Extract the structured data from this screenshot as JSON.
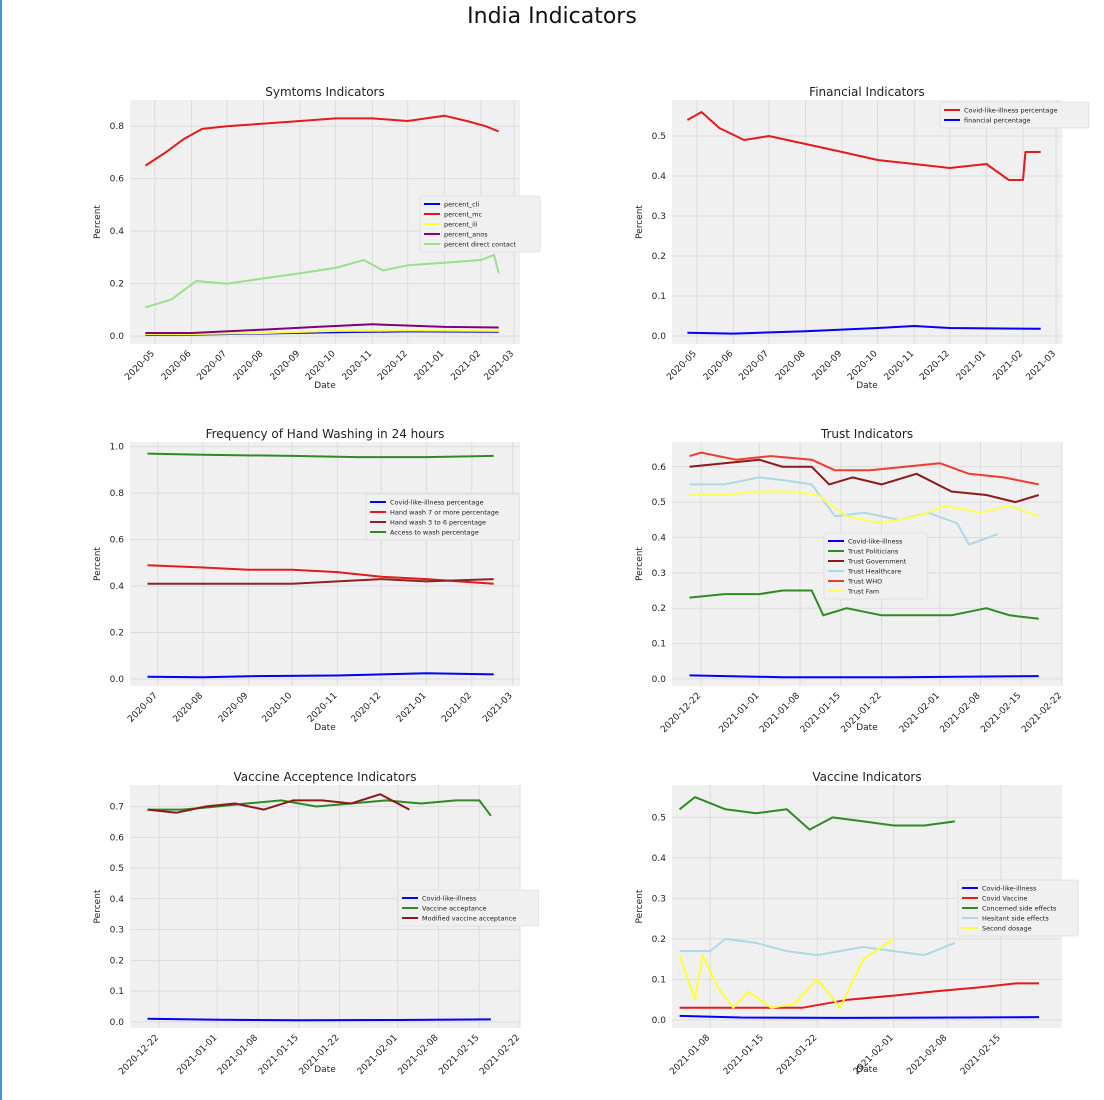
{
  "page": {
    "suptitle": "India Indicators"
  },
  "chart_data": [
    {
      "type": "line",
      "title": "Symtoms Indicators",
      "xlabel": "Date",
      "ylabel": "Percent",
      "x_range": [
        "2020-04-10",
        "2021-03-06"
      ],
      "ylim": [
        -0.03,
        0.9
      ],
      "yticks": [
        0.0,
        0.2,
        0.4,
        0.6,
        0.8
      ],
      "xticks": [
        "2020-05",
        "2020-06",
        "2020-07",
        "2020-08",
        "2020-09",
        "2020-10",
        "2020-11",
        "2020-12",
        "2021-01",
        "2021-02",
        "2021-03"
      ],
      "grid": true,
      "legend_placement": "center-right",
      "series": [
        {
          "name": "percent_cli",
          "color": "#0000ff",
          "x": [
            "2020-04-23",
            "2020-06-01",
            "2020-08-01",
            "2020-10-01",
            "2020-12-01",
            "2021-02-16"
          ],
          "y": [
            0.005,
            0.006,
            0.01,
            0.015,
            0.018,
            0.017
          ]
        },
        {
          "name": "percent_mc",
          "color": "#e41a1c",
          "x": [
            "2020-04-23",
            "2020-05-10",
            "2020-05-25",
            "2020-06-10",
            "2020-07-01",
            "2020-08-01",
            "2020-09-01",
            "2020-10-01",
            "2020-11-01",
            "2020-12-01",
            "2021-01-01",
            "2021-01-20",
            "2021-02-05",
            "2021-02-16"
          ],
          "y": [
            0.65,
            0.7,
            0.75,
            0.79,
            0.8,
            0.81,
            0.82,
            0.83,
            0.83,
            0.82,
            0.84,
            0.82,
            0.8,
            0.78
          ]
        },
        {
          "name": "percent_ili",
          "color": "#ffff33",
          "x": [
            "2020-04-23",
            "2020-06-01",
            "2020-08-01",
            "2020-10-01",
            "2020-12-01",
            "2021-02-16"
          ],
          "y": [
            0.008,
            0.008,
            0.012,
            0.02,
            0.022,
            0.02
          ]
        },
        {
          "name": "percent_anos",
          "color": "#800080",
          "x": [
            "2020-04-23",
            "2020-06-01",
            "2020-08-01",
            "2020-09-15",
            "2020-11-01",
            "2021-01-01",
            "2021-02-16"
          ],
          "y": [
            0.012,
            0.012,
            0.025,
            0.035,
            0.045,
            0.035,
            0.033
          ]
        },
        {
          "name": "percent direct contact",
          "color": "#98e08a",
          "x": [
            "2020-04-23",
            "2020-05-15",
            "2020-06-05",
            "2020-07-01",
            "2020-08-01",
            "2020-09-01",
            "2020-10-01",
            "2020-10-25",
            "2020-11-10",
            "2020-12-01",
            "2021-01-01",
            "2021-02-01",
            "2021-02-12",
            "2021-02-16"
          ],
          "y": [
            0.11,
            0.14,
            0.21,
            0.2,
            0.22,
            0.24,
            0.26,
            0.29,
            0.25,
            0.27,
            0.28,
            0.29,
            0.31,
            0.24
          ]
        }
      ]
    },
    {
      "type": "line",
      "title": "Financial Indicators",
      "xlabel": "Date",
      "ylabel": "Percent",
      "x_range": [
        "2020-04-10",
        "2021-03-06"
      ],
      "ylim": [
        -0.02,
        0.59
      ],
      "yticks": [
        0.0,
        0.1,
        0.2,
        0.3,
        0.4,
        0.5
      ],
      "xticks": [
        "2020-05",
        "2020-06",
        "2020-07",
        "2020-08",
        "2020-09",
        "2020-10",
        "2020-11",
        "2020-12",
        "2021-01",
        "2021-02",
        "2021-03"
      ],
      "grid": true,
      "legend_placement": "upper-right",
      "series": [
        {
          "name": "Covid-like-illness percentage",
          "color": "#e41a1c",
          "x": [
            "2020-04-23",
            "2020-05-05",
            "2020-05-20",
            "2020-06-10",
            "2020-07-01",
            "2020-08-01",
            "2020-09-01",
            "2020-10-01",
            "2020-11-01",
            "2020-12-01",
            "2021-01-01",
            "2021-01-20",
            "2021-02-01",
            "2021-02-03",
            "2021-02-16"
          ],
          "y": [
            0.54,
            0.56,
            0.52,
            0.49,
            0.5,
            0.48,
            0.46,
            0.44,
            0.43,
            0.42,
            0.43,
            0.39,
            0.39,
            0.46,
            0.46
          ]
        },
        {
          "name": "financial percentage",
          "color": "#0000ff",
          "x": [
            "2020-04-23",
            "2020-06-01",
            "2020-08-01",
            "2020-10-01",
            "2020-11-01",
            "2020-12-01",
            "2021-02-16"
          ],
          "y": [
            0.008,
            0.006,
            0.012,
            0.02,
            0.025,
            0.02,
            0.018
          ]
        }
      ]
    },
    {
      "type": "line",
      "title": "Frequency of Hand Washing in 24 hours",
      "xlabel": "Date",
      "ylabel": "Percent",
      "x_range": [
        "2020-06-12",
        "2021-03-06"
      ],
      "ylim": [
        -0.03,
        1.02
      ],
      "yticks": [
        0.0,
        0.2,
        0.4,
        0.6,
        0.8,
        1.0
      ],
      "xticks": [
        "2020-07",
        "2020-08",
        "2020-09",
        "2020-10",
        "2020-11",
        "2020-12",
        "2021-01",
        "2021-02",
        "2021-03"
      ],
      "grid": true,
      "legend_placement": "center-right",
      "series": [
        {
          "name": "Covid-like-illness percentage",
          "color": "#0000ff",
          "x": [
            "2020-06-24",
            "2020-08-01",
            "2020-09-01",
            "2020-11-01",
            "2021-01-01",
            "2021-02-16"
          ],
          "y": [
            0.01,
            0.008,
            0.012,
            0.015,
            0.025,
            0.02
          ]
        },
        {
          "name": "Hand wash 7 or more percentage",
          "color": "#e41a1c",
          "x": [
            "2020-06-24",
            "2020-08-01",
            "2020-09-01",
            "2020-10-01",
            "2020-11-01",
            "2020-12-01",
            "2021-01-01",
            "2021-02-16"
          ],
          "y": [
            0.49,
            0.48,
            0.47,
            0.47,
            0.46,
            0.44,
            0.43,
            0.41
          ]
        },
        {
          "name": "Hand wash 3 to 6 percentage",
          "color": "#8b2323",
          "x": [
            "2020-06-24",
            "2020-08-01",
            "2020-09-01",
            "2020-10-01",
            "2020-11-01",
            "2020-12-01",
            "2021-01-01",
            "2021-02-16"
          ],
          "y": [
            0.41,
            0.41,
            0.41,
            0.41,
            0.42,
            0.43,
            0.42,
            0.43
          ]
        },
        {
          "name": "Access to wash percentage",
          "color": "#2e8b22",
          "x": [
            "2020-06-24",
            "2020-08-01",
            "2020-10-01",
            "2020-11-15",
            "2021-01-01",
            "2021-02-16"
          ],
          "y": [
            0.97,
            0.965,
            0.96,
            0.955,
            0.955,
            0.96
          ]
        }
      ]
    },
    {
      "type": "line",
      "title": "Trust Indicators",
      "xlabel": "Date",
      "ylabel": "Percent",
      "x_range": [
        "2020-12-17",
        "2021-02-22"
      ],
      "ylim": [
        -0.02,
        0.67
      ],
      "yticks": [
        0.0,
        0.1,
        0.2,
        0.3,
        0.4,
        0.5,
        0.6
      ],
      "xticks": [
        "2020-12-22",
        "2021-01-01",
        "2021-01-08",
        "2021-01-15",
        "2021-01-22",
        "2021-02-01",
        "2021-02-08",
        "2021-02-15",
        "2021-02-22"
      ],
      "grid": true,
      "legend_placement": "center",
      "series": [
        {
          "name": "Covid-like-illness",
          "color": "#0000ff",
          "x": [
            "2020-12-20",
            "2021-01-05",
            "2021-01-25",
            "2021-02-18"
          ],
          "y": [
            0.01,
            0.005,
            0.005,
            0.008
          ]
        },
        {
          "name": "Trust Politicians",
          "color": "#2e8b22",
          "x": [
            "2020-12-20",
            "2020-12-26",
            "2021-01-01",
            "2021-01-05",
            "2021-01-10",
            "2021-01-12",
            "2021-01-16",
            "2021-01-22",
            "2021-01-28",
            "2021-02-03",
            "2021-02-09",
            "2021-02-13",
            "2021-02-18"
          ],
          "y": [
            0.23,
            0.24,
            0.24,
            0.25,
            0.25,
            0.18,
            0.2,
            0.18,
            0.18,
            0.18,
            0.2,
            0.18,
            0.17
          ]
        },
        {
          "name": "Trust Government",
          "color": "#8b1a1a",
          "x": [
            "2020-12-20",
            "2020-12-26",
            "2021-01-01",
            "2021-01-05",
            "2021-01-10",
            "2021-01-13",
            "2021-01-17",
            "2021-01-22",
            "2021-01-28",
            "2021-02-03",
            "2021-02-09",
            "2021-02-14",
            "2021-02-18"
          ],
          "y": [
            0.6,
            0.61,
            0.62,
            0.6,
            0.6,
            0.55,
            0.57,
            0.55,
            0.58,
            0.53,
            0.52,
            0.5,
            0.52
          ]
        },
        {
          "name": "Trust Healthcare",
          "color": "#add8e6",
          "x": [
            "2020-12-20",
            "2020-12-26",
            "2021-01-01",
            "2021-01-06",
            "2021-01-10",
            "2021-01-14",
            "2021-01-19",
            "2021-01-25",
            "2021-01-30",
            "2021-02-04",
            "2021-02-06",
            "2021-02-11"
          ],
          "y": [
            0.55,
            0.55,
            0.57,
            0.56,
            0.55,
            0.46,
            0.47,
            0.45,
            0.47,
            0.44,
            0.38,
            0.41
          ]
        },
        {
          "name": "Trust WHO",
          "color": "#f03c2e",
          "x": [
            "2020-12-20",
            "2020-12-22",
            "2020-12-28",
            "2021-01-03",
            "2021-01-10",
            "2021-01-14",
            "2021-01-20",
            "2021-01-26",
            "2021-02-01",
            "2021-02-06",
            "2021-02-12",
            "2021-02-18"
          ],
          "y": [
            0.63,
            0.64,
            0.62,
            0.63,
            0.62,
            0.59,
            0.59,
            0.6,
            0.61,
            0.58,
            0.57,
            0.55
          ]
        },
        {
          "name": "Trust Fam",
          "color": "#ffff55",
          "x": [
            "2020-12-20",
            "2020-12-26",
            "2021-01-01",
            "2021-01-06",
            "2021-01-11",
            "2021-01-16",
            "2021-01-22",
            "2021-01-28",
            "2021-02-02",
            "2021-02-08",
            "2021-02-13",
            "2021-02-18"
          ],
          "y": [
            0.52,
            0.52,
            0.53,
            0.53,
            0.52,
            0.46,
            0.44,
            0.46,
            0.49,
            0.47,
            0.49,
            0.46
          ]
        }
      ]
    },
    {
      "type": "line",
      "title": "Vaccine Acceptence Indicators",
      "xlabel": "Date",
      "ylabel": "Percent",
      "x_range": [
        "2020-12-17",
        "2021-02-22"
      ],
      "ylim": [
        -0.02,
        0.77
      ],
      "yticks": [
        0.0,
        0.1,
        0.2,
        0.3,
        0.4,
        0.5,
        0.6,
        0.7
      ],
      "xticks": [
        "2020-12-22",
        "2021-01-01",
        "2021-01-08",
        "2021-01-15",
        "2021-01-22",
        "2021-02-01",
        "2021-02-08",
        "2021-02-15",
        "2021-02-22"
      ],
      "grid": true,
      "legend_placement": "center-right",
      "series": [
        {
          "name": "Covid-like-illness",
          "color": "#0000ff",
          "x": [
            "2020-12-20",
            "2021-01-01",
            "2021-01-15",
            "2021-02-01",
            "2021-02-17"
          ],
          "y": [
            0.01,
            0.007,
            0.005,
            0.006,
            0.008
          ]
        },
        {
          "name": "Vaccine acceptance",
          "color": "#2e8b22",
          "x": [
            "2020-12-20",
            "2020-12-26",
            "2021-01-01",
            "2021-01-06",
            "2021-01-12",
            "2021-01-18",
            "2021-01-24",
            "2021-01-30",
            "2021-02-05",
            "2021-02-11",
            "2021-02-15",
            "2021-02-17"
          ],
          "y": [
            0.69,
            0.69,
            0.7,
            0.71,
            0.72,
            0.7,
            0.71,
            0.72,
            0.71,
            0.72,
            0.72,
            0.67
          ]
        },
        {
          "name": "Modified vaccine acceptance",
          "color": "#8b1a1a",
          "x": [
            "2020-12-20",
            "2020-12-25",
            "2020-12-30",
            "2021-01-04",
            "2021-01-09",
            "2021-01-14",
            "2021-01-19",
            "2021-01-24",
            "2021-01-29",
            "2021-02-03"
          ],
          "y": [
            0.69,
            0.68,
            0.7,
            0.71,
            0.69,
            0.72,
            0.72,
            0.71,
            0.74,
            0.69
          ]
        }
      ]
    },
    {
      "type": "line",
      "title": "Vaccine Indicators",
      "xlabel": "Date",
      "ylabel": "Percent",
      "x_range": [
        "2021-01-03",
        "2021-02-23"
      ],
      "ylim": [
        -0.02,
        0.58
      ],
      "yticks": [
        0.0,
        0.1,
        0.2,
        0.3,
        0.4,
        0.5
      ],
      "xticks": [
        "2021-01-08",
        "2021-01-15",
        "2021-01-22",
        "2021-02-01",
        "2021-02-08",
        "2021-02-15"
      ],
      "grid": true,
      "legend_placement": "center-right",
      "series": [
        {
          "name": "Covid-like-illness",
          "color": "#0000ff",
          "x": [
            "2021-01-04",
            "2021-01-12",
            "2021-01-25",
            "2021-02-10",
            "2021-02-20"
          ],
          "y": [
            0.01,
            0.006,
            0.005,
            0.006,
            0.007
          ]
        },
        {
          "name": "Covid Vaccine",
          "color": "#e41a1c",
          "x": [
            "2021-01-04",
            "2021-01-08",
            "2021-01-14",
            "2021-01-20",
            "2021-01-26",
            "2021-02-01",
            "2021-02-06",
            "2021-02-12",
            "2021-02-17",
            "2021-02-20"
          ],
          "y": [
            0.03,
            0.03,
            0.03,
            0.03,
            0.05,
            0.06,
            0.07,
            0.08,
            0.09,
            0.09
          ]
        },
        {
          "name": "Concerned side effects",
          "color": "#2e8b22",
          "x": [
            "2021-01-04",
            "2021-01-06",
            "2021-01-10",
            "2021-01-14",
            "2021-01-18",
            "2021-01-21",
            "2021-01-24",
            "2021-01-28",
            "2021-02-01",
            "2021-02-05",
            "2021-02-09"
          ],
          "y": [
            0.52,
            0.55,
            0.52,
            0.51,
            0.52,
            0.47,
            0.5,
            0.49,
            0.48,
            0.48,
            0.49
          ]
        },
        {
          "name": "Hesitant side effects",
          "color": "#add8e6",
          "x": [
            "2021-01-04",
            "2021-01-08",
            "2021-01-10",
            "2021-01-14",
            "2021-01-18",
            "2021-01-22",
            "2021-01-28",
            "2021-02-01",
            "2021-02-05",
            "2021-02-09"
          ],
          "y": [
            0.17,
            0.17,
            0.2,
            0.19,
            0.17,
            0.16,
            0.18,
            0.17,
            0.16,
            0.19
          ]
        },
        {
          "name": "Second dosage",
          "color": "#ffff33",
          "x": [
            "2021-01-04",
            "2021-01-06",
            "2021-01-07",
            "2021-01-09",
            "2021-01-11",
            "2021-01-13",
            "2021-01-16",
            "2021-01-19",
            "2021-01-22",
            "2021-01-25",
            "2021-01-28",
            "2021-02-01"
          ],
          "y": [
            0.16,
            0.05,
            0.16,
            0.08,
            0.03,
            0.07,
            0.03,
            0.04,
            0.1,
            0.03,
            0.15,
            0.2
          ]
        }
      ]
    }
  ]
}
